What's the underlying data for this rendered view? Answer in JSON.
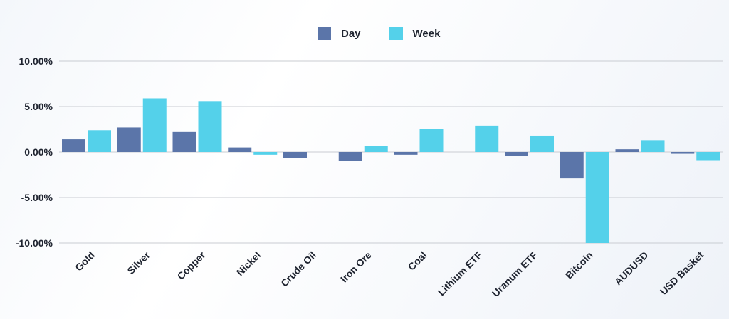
{
  "chart_data": {
    "type": "bar",
    "categories": [
      "Gold",
      "Silver",
      "Copper",
      "Nickel",
      "Crude Oil",
      "Iron Ore",
      "Coal",
      "Lithium ETF",
      "Uranum ETF",
      "Bitcoin",
      "AUDUSD",
      "USD Basket"
    ],
    "series": [
      {
        "name": "Day",
        "color": "#5b75a9",
        "values": [
          1.4,
          2.7,
          2.2,
          0.5,
          -0.7,
          -1.0,
          -0.3,
          0.0,
          -0.4,
          -2.9,
          0.3,
          -0.2
        ]
      },
      {
        "name": "Week",
        "color": "#54d1ea",
        "values": [
          2.4,
          5.9,
          5.6,
          -0.3,
          0.0,
          0.7,
          2.5,
          2.9,
          1.8,
          -10.0,
          1.3,
          -0.9
        ]
      }
    ],
    "ylim": [
      -10,
      10
    ],
    "yticks": [
      10,
      5,
      0,
      -5,
      -10
    ],
    "ytick_labels": [
      "10.00%",
      "5.00%",
      "0.00%",
      "-5.00%",
      "-10.00%"
    ],
    "grid": true,
    "legend": "top-center"
  }
}
